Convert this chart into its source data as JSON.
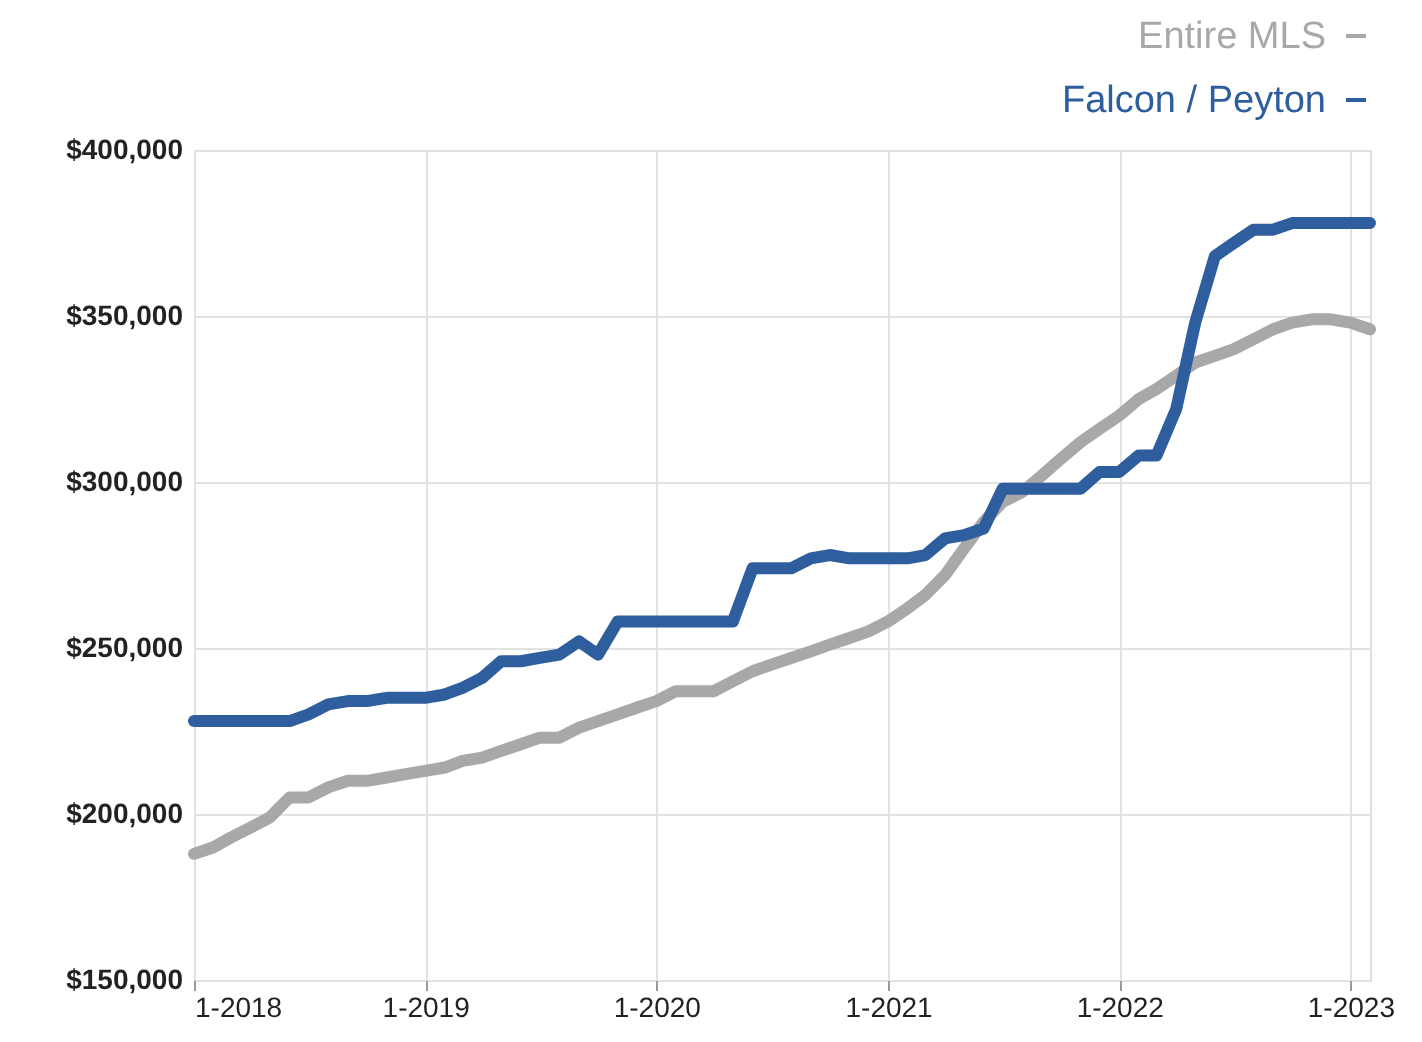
{
  "chart_data": {
    "type": "line",
    "x": [
      "2018-01",
      "2018-02",
      "2018-03",
      "2018-04",
      "2018-05",
      "2018-06",
      "2018-07",
      "2018-08",
      "2018-09",
      "2018-10",
      "2018-11",
      "2018-12",
      "2019-01",
      "2019-02",
      "2019-03",
      "2019-04",
      "2019-05",
      "2019-06",
      "2019-07",
      "2019-08",
      "2019-09",
      "2019-10",
      "2019-11",
      "2019-12",
      "2020-01",
      "2020-02",
      "2020-03",
      "2020-04",
      "2020-05",
      "2020-06",
      "2020-07",
      "2020-08",
      "2020-09",
      "2020-10",
      "2020-11",
      "2020-12",
      "2021-01",
      "2021-02",
      "2021-03",
      "2021-04",
      "2021-05",
      "2021-06",
      "2021-07",
      "2021-08",
      "2021-09",
      "2021-10",
      "2021-11",
      "2021-12",
      "2022-01",
      "2022-02",
      "2022-03",
      "2022-04",
      "2022-05",
      "2022-06",
      "2022-07",
      "2022-08",
      "2022-09",
      "2022-10",
      "2022-11",
      "2022-12",
      "2023-01",
      "2023-02"
    ],
    "series": [
      {
        "name": "Entire MLS",
        "color": "#a8a8a8",
        "values": [
          188000,
          190000,
          193000,
          196000,
          199000,
          205000,
          205000,
          208000,
          210000,
          210000,
          211000,
          212000,
          213000,
          214000,
          216000,
          217000,
          219000,
          221000,
          223000,
          223000,
          226000,
          228000,
          230000,
          232000,
          234000,
          237000,
          237000,
          237000,
          240000,
          243000,
          245000,
          247000,
          249000,
          251000,
          253000,
          255000,
          258000,
          262000,
          266000,
          272000,
          280000,
          288000,
          294000,
          297000,
          302000,
          307000,
          312000,
          316000,
          320000,
          325000,
          328000,
          332000,
          336000,
          338000,
          340000,
          343000,
          346000,
          348000,
          349000,
          349000,
          348000,
          346000
        ]
      },
      {
        "name": "Falcon / Peyton",
        "color": "#2e5e9e",
        "values": [
          228000,
          228000,
          228000,
          228000,
          228000,
          228000,
          230000,
          233000,
          234000,
          234000,
          235000,
          235000,
          235000,
          236000,
          238000,
          241000,
          246000,
          246000,
          247000,
          248000,
          252000,
          248000,
          258000,
          258000,
          258000,
          258000,
          258000,
          258000,
          258000,
          274000,
          274000,
          274000,
          277000,
          278000,
          277000,
          277000,
          277000,
          277000,
          278000,
          283000,
          284000,
          286000,
          298000,
          298000,
          298000,
          298000,
          298000,
          303000,
          303000,
          308000,
          308000,
          322000,
          348000,
          368000,
          372000,
          376000,
          376000,
          378000,
          378000,
          378000,
          378000,
          378000
        ]
      }
    ],
    "xlim": [
      "2018-01",
      "2023-02"
    ],
    "xticks": [
      {
        "value": "2018-01",
        "label": "1-2018"
      },
      {
        "value": "2019-01",
        "label": "1-2019"
      },
      {
        "value": "2020-01",
        "label": "1-2020"
      },
      {
        "value": "2021-01",
        "label": "1-2021"
      },
      {
        "value": "2022-01",
        "label": "1-2022"
      },
      {
        "value": "2023-01",
        "label": "1-2023"
      }
    ],
    "ylim": [
      150000,
      400000
    ],
    "yticks": [
      {
        "value": 150000,
        "label": "$150,000"
      },
      {
        "value": 200000,
        "label": "$200,000"
      },
      {
        "value": 250000,
        "label": "$250,000"
      },
      {
        "value": 300000,
        "label": "$300,000"
      },
      {
        "value": 350000,
        "label": "$350,000"
      },
      {
        "value": 400000,
        "label": "$400,000"
      }
    ],
    "grid": true,
    "legend": "top right",
    "marker": "none",
    "line_style": "solid"
  }
}
